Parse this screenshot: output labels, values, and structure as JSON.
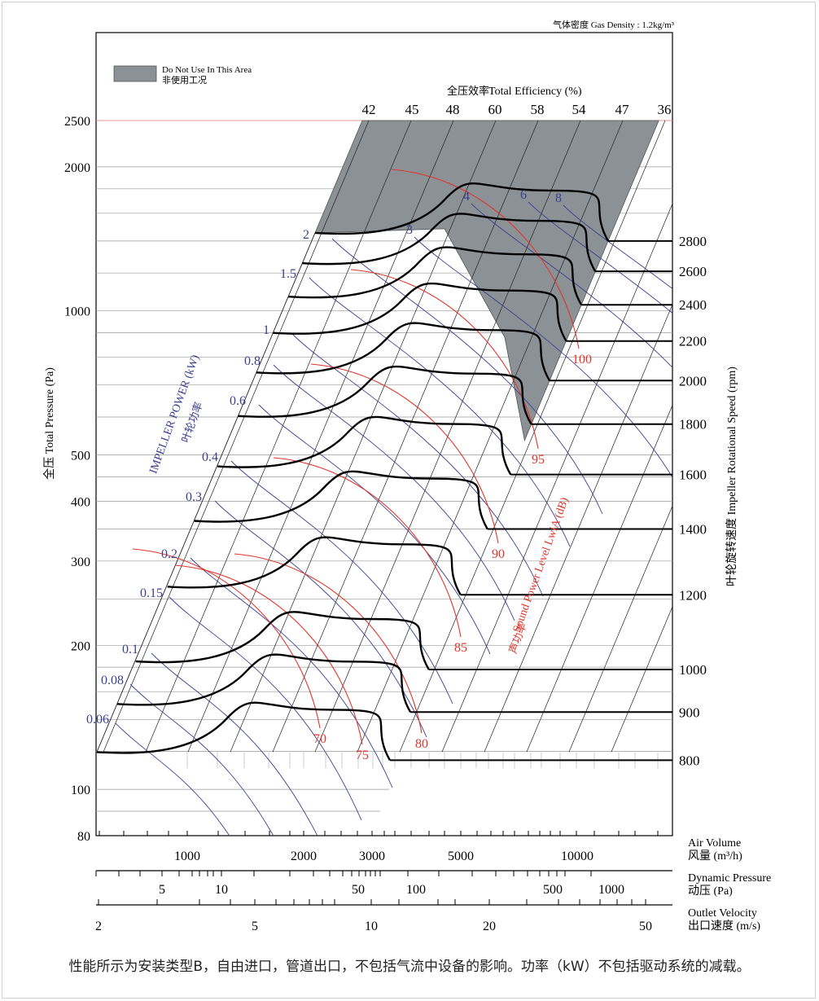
{
  "chart_data": {
    "type": "line",
    "title": "Total Efficiency (%)",
    "title_zh": "全压效率",
    "gas_density": "气体密度 Gas Density : 1.2kg/m³",
    "legend": {
      "label": "Do Not Use In This Area",
      "label_zh": "非使用工况",
      "placement": "top-left",
      "color": "#8c9196"
    },
    "y_axis": {
      "label": "全压 Total Pressure (Pa)",
      "scale": "log",
      "range": [
        80,
        2500
      ],
      "ticks": [
        "80",
        "100",
        "200",
        "300",
        "400",
        "500",
        "1000",
        "2000",
        "2500"
      ]
    },
    "right_axis": {
      "label": "叶轮旋转速度 Impeller Rotational Speed (rpm)",
      "speeds": [
        "800",
        "900",
        "1000",
        "1200",
        "1400",
        "1600",
        "1800",
        "2000",
        "2200",
        "2400",
        "2600",
        "2800"
      ]
    },
    "efficiency_labels": [
      "42",
      "45",
      "48",
      "60",
      "58",
      "54",
      "47",
      "36"
    ],
    "power_axis": {
      "label": "IMPELLER POWER (kW)",
      "label_zh": "叶轮功率",
      "color": "#3b3f8f",
      "values": [
        "0.06",
        "0.08",
        "0.1",
        "0.15",
        "0.2",
        "0.3",
        "0.4",
        "0.6",
        "0.8",
        "1",
        "1.5",
        "2",
        "3",
        "4",
        "6",
        "8"
      ]
    },
    "sound_axis": {
      "label": "Sound Power Level LwiA (dB)",
      "label_zh": "声功率",
      "color": "#e0352b",
      "values": [
        "70",
        "75",
        "80",
        "85",
        "90",
        "95",
        "100"
      ]
    },
    "x_axes": [
      {
        "name": "Air Volume",
        "name_zh": "风量",
        "unit": "(m³/h)",
        "scale": "log",
        "ticks": [
          "1000",
          "2000",
          "3000",
          "5000",
          "10000"
        ]
      },
      {
        "name": "Dynamic Pressure",
        "name_zh": "动压",
        "unit": "(Pa)",
        "scale": "log",
        "ticks": [
          "5",
          "10",
          "50",
          "100",
          "500",
          "1000"
        ]
      },
      {
        "name": "Outlet Velocity",
        "name_zh": "出口速度",
        "unit": "(m/s)",
        "scale": "log",
        "ticks": [
          "2",
          "5",
          "10",
          "20",
          "50"
        ]
      }
    ],
    "series": [
      {
        "name": "800",
        "x_end": 3200,
        "y_end": 115
      },
      {
        "name": "900",
        "x_end": 3600,
        "y_end": 145
      },
      {
        "name": "1000",
        "x_end": 4000,
        "y_end": 178
      },
      {
        "name": "1200",
        "x_end": 4800,
        "y_end": 255
      },
      {
        "name": "1400",
        "x_end": 5600,
        "y_end": 350
      },
      {
        "name": "1600",
        "x_end": 6400,
        "y_end": 455
      },
      {
        "name": "1800",
        "x_end": 7200,
        "y_end": 580
      },
      {
        "name": "2000",
        "x_end": 8000,
        "y_end": 715
      },
      {
        "name": "2200",
        "x_end": 8800,
        "y_end": 865
      },
      {
        "name": "2400",
        "x_end": 9600,
        "y_end": 1030
      },
      {
        "name": "2600",
        "x_end": 10400,
        "y_end": 1210
      },
      {
        "name": "2800",
        "x_end": 11200,
        "y_end": 1400
      }
    ]
  },
  "footnote": "性能所示为安装类型B，自由进口，管道出口，不包括气流中设备的影响。功率（kW）不包括驱动系统的减载。"
}
